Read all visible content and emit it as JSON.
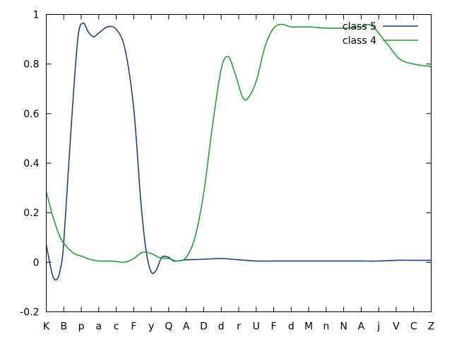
{
  "chart_data": {
    "type": "line",
    "title": "",
    "xlabel": "",
    "ylabel": "",
    "categories": [
      "K",
      "B",
      "p",
      "a",
      "c",
      "F",
      "y",
      "Q",
      "A",
      "D",
      "d",
      "r",
      "U",
      "F",
      "d",
      "M",
      "n",
      "N",
      "A",
      "j",
      "V",
      "C",
      "Z"
    ],
    "ylim": [
      -0.2,
      1.0
    ],
    "yticks": [
      -0.2,
      0,
      0.2,
      0.4,
      0.6,
      0.8,
      1.0
    ],
    "ytick_labels": [
      "-0.2",
      "0",
      "0.2",
      "0.4",
      "0.6",
      "0.8",
      "1"
    ],
    "grid": false,
    "legend_position": "top-right",
    "series": [
      {
        "name": "class 5",
        "color": "#1f3f8f",
        "points": [
          [
            0,
            0.07
          ],
          [
            0.35,
            -0.05
          ],
          [
            0.6,
            -0.07
          ],
          [
            0.8,
            -0.03
          ],
          [
            1.0,
            0.08
          ],
          [
            1.4,
            0.52
          ],
          [
            1.8,
            0.9
          ],
          [
            2.1,
            0.965
          ],
          [
            2.4,
            0.93
          ],
          [
            2.7,
            0.91
          ],
          [
            3.0,
            0.925
          ],
          [
            3.5,
            0.95
          ],
          [
            4.0,
            0.94
          ],
          [
            4.5,
            0.86
          ],
          [
            5.0,
            0.62
          ],
          [
            5.4,
            0.25
          ],
          [
            5.7,
            0.05
          ],
          [
            6.0,
            -0.04
          ],
          [
            6.3,
            -0.03
          ],
          [
            6.6,
            0.02
          ],
          [
            7.0,
            0.02
          ],
          [
            7.3,
            0.005
          ],
          [
            8.0,
            0.01
          ],
          [
            9.0,
            0.012
          ],
          [
            10.0,
            0.015
          ],
          [
            11.0,
            0.01
          ],
          [
            12.0,
            0.005
          ],
          [
            13.0,
            0.005
          ],
          [
            14.0,
            0.005
          ],
          [
            15.0,
            0.005
          ],
          [
            16.0,
            0.005
          ],
          [
            17.0,
            0.005
          ],
          [
            18.0,
            0.005
          ],
          [
            19.0,
            0.005
          ],
          [
            20.0,
            0.008
          ],
          [
            21.0,
            0.008
          ],
          [
            22.0,
            0.008
          ]
        ]
      },
      {
        "name": "class 4",
        "color": "#1ea531",
        "points": [
          [
            0,
            0.285
          ],
          [
            0.4,
            0.18
          ],
          [
            0.8,
            0.1
          ],
          [
            1.2,
            0.06
          ],
          [
            1.6,
            0.035
          ],
          [
            2.0,
            0.025
          ],
          [
            2.5,
            0.012
          ],
          [
            3.0,
            0.005
          ],
          [
            3.5,
            0.005
          ],
          [
            4.0,
            0.003
          ],
          [
            4.5,
            0.0
          ],
          [
            5.0,
            0.015
          ],
          [
            5.5,
            0.04
          ],
          [
            6.0,
            0.035
          ],
          [
            6.5,
            0.018
          ],
          [
            7.0,
            0.015
          ],
          [
            7.5,
            0.005
          ],
          [
            8.0,
            0.02
          ],
          [
            8.5,
            0.1
          ],
          [
            9.0,
            0.28
          ],
          [
            9.5,
            0.55
          ],
          [
            10.0,
            0.78
          ],
          [
            10.4,
            0.83
          ],
          [
            10.8,
            0.76
          ],
          [
            11.2,
            0.67
          ],
          [
            11.5,
            0.66
          ],
          [
            12.0,
            0.73
          ],
          [
            12.5,
            0.87
          ],
          [
            13.0,
            0.945
          ],
          [
            13.5,
            0.96
          ],
          [
            14.0,
            0.95
          ],
          [
            15.0,
            0.95
          ],
          [
            16.0,
            0.945
          ],
          [
            17.0,
            0.945
          ],
          [
            18.0,
            0.95
          ],
          [
            18.6,
            0.955
          ],
          [
            19.5,
            0.88
          ],
          [
            20.2,
            0.82
          ],
          [
            21.0,
            0.8
          ],
          [
            22.0,
            0.79
          ]
        ]
      }
    ]
  }
}
